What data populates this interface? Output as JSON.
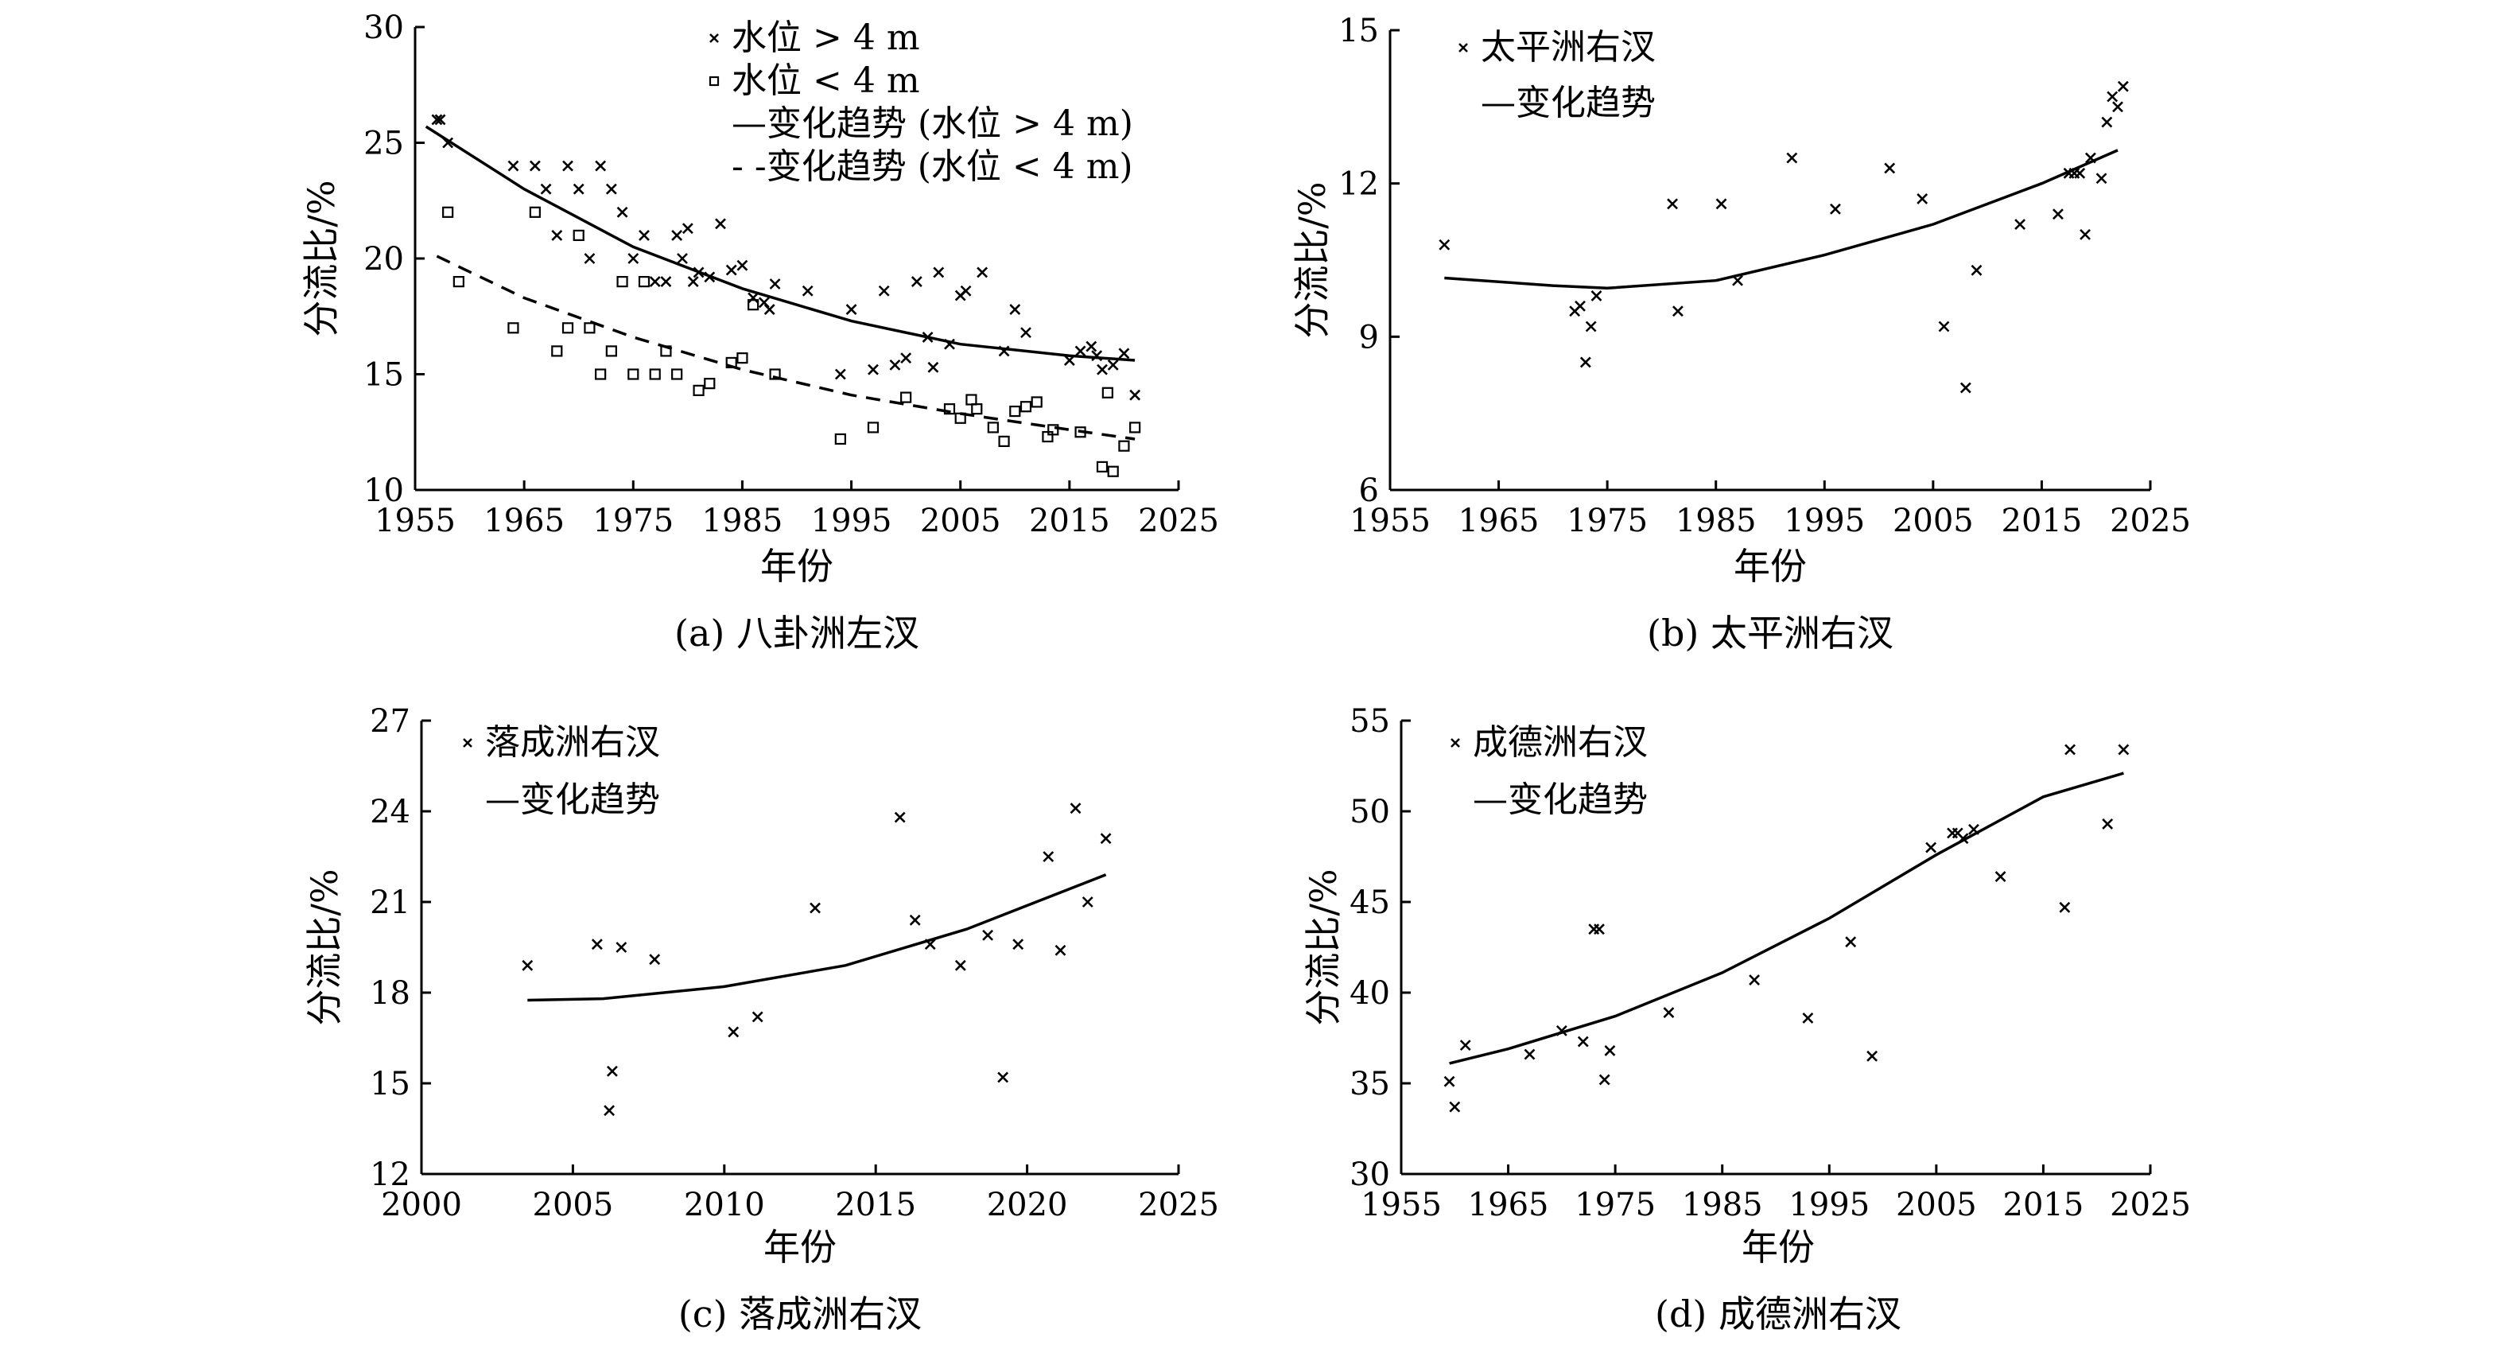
{
  "chart_data": [
    {
      "type": "scatter",
      "caption": "(a) 八卦洲左汊",
      "xlabel": "年份",
      "ylabel": "分流比/%",
      "xlim": [
        1955,
        2025
      ],
      "ylim": [
        10,
        30
      ],
      "xticks": [
        1955,
        1965,
        1975,
        1985,
        1995,
        2005,
        2015,
        2025
      ],
      "yticks": [
        10,
        15,
        20,
        25,
        30
      ],
      "legend_position": "top-right",
      "legend": [
        "水位 > 4 m",
        "水位 < 4 m",
        "—变化趋势 (水位 > 4 m)",
        "- -变化趋势 (水位 < 4 m)"
      ],
      "series": [
        {
          "name": "水位 > 4 m",
          "marker": "x",
          "points": [
            [
              1957,
              26
            ],
            [
              1957.3,
              26
            ],
            [
              1958,
              25
            ],
            [
              1964,
              24
            ],
            [
              1966,
              24
            ],
            [
              1967,
              23
            ],
            [
              1968,
              21
            ],
            [
              1969,
              24
            ],
            [
              1970,
              23
            ],
            [
              1971,
              20
            ],
            [
              1972,
              24
            ],
            [
              1973,
              23
            ],
            [
              1974,
              22
            ],
            [
              1975,
              20
            ],
            [
              1976,
              21
            ],
            [
              1977,
              19
            ],
            [
              1978,
              19
            ],
            [
              1979,
              21
            ],
            [
              1979.5,
              20
            ],
            [
              1980,
              21.3
            ],
            [
              1980.5,
              19
            ],
            [
              1981,
              19.4
            ],
            [
              1982,
              19.2
            ],
            [
              1983,
              21.5
            ],
            [
              1984,
              19.5
            ],
            [
              1985,
              19.7
            ],
            [
              1986,
              18.3
            ],
            [
              1987,
              18.1
            ],
            [
              1987.5,
              17.8
            ],
            [
              1988,
              18.9
            ],
            [
              1991,
              18.6
            ],
            [
              1994,
              15
            ],
            [
              1995,
              17.8
            ],
            [
              1997,
              15.2
            ],
            [
              1998,
              18.6
            ],
            [
              1999,
              15.4
            ],
            [
              2000,
              15.7
            ],
            [
              2001,
              19
            ],
            [
              2002,
              16.6
            ],
            [
              2002.5,
              15.3
            ],
            [
              2003,
              19.4
            ],
            [
              2004,
              16.3
            ],
            [
              2005,
              18.4
            ],
            [
              2005.5,
              18.6
            ],
            [
              2007,
              19.4
            ],
            [
              2009,
              16
            ],
            [
              2010,
              17.8
            ],
            [
              2011,
              16.8
            ],
            [
              2015,
              15.6
            ],
            [
              2016,
              16
            ],
            [
              2017,
              16.2
            ],
            [
              2017.5,
              15.8
            ],
            [
              2018,
              15.2
            ],
            [
              2019,
              15.4
            ],
            [
              2020,
              15.9
            ],
            [
              2021,
              14.1
            ]
          ]
        },
        {
          "name": "水位 < 4 m",
          "marker": "square",
          "points": [
            [
              1958,
              22
            ],
            [
              1959,
              19
            ],
            [
              1964,
              17
            ],
            [
              1966,
              22
            ],
            [
              1968,
              16
            ],
            [
              1969,
              17
            ],
            [
              1970,
              21
            ],
            [
              1971,
              17
            ],
            [
              1972,
              15
            ],
            [
              1973,
              16
            ],
            [
              1974,
              19
            ],
            [
              1975,
              15
            ],
            [
              1976,
              19
            ],
            [
              1977,
              15
            ],
            [
              1978,
              16
            ],
            [
              1979,
              15
            ],
            [
              1981,
              14.3
            ],
            [
              1982,
              14.6
            ],
            [
              1984,
              15.5
            ],
            [
              1985,
              15.7
            ],
            [
              1986,
              18
            ],
            [
              1988,
              15
            ],
            [
              1994,
              12.2
            ],
            [
              1997,
              12.7
            ],
            [
              2000,
              14
            ],
            [
              2004,
              13.5
            ],
            [
              2005,
              13.1
            ],
            [
              2006,
              13.9
            ],
            [
              2006.5,
              13.5
            ],
            [
              2008,
              12.7
            ],
            [
              2009,
              12.1
            ],
            [
              2010,
              13.4
            ],
            [
              2011,
              13.6
            ],
            [
              2012,
              13.8
            ],
            [
              2013,
              12.3
            ],
            [
              2013.5,
              12.6
            ],
            [
              2016,
              12.5
            ],
            [
              2018,
              11
            ],
            [
              2018.5,
              14.2
            ],
            [
              2019,
              10.8
            ],
            [
              2020,
              11.9
            ],
            [
              2021,
              12.7
            ]
          ]
        },
        {
          "name": "变化趋势 (水位 > 4 m)",
          "type": "line",
          "points": [
            [
              1956,
              25.7
            ],
            [
              1965,
              23
            ],
            [
              1975,
              20.5
            ],
            [
              1985,
              18.7
            ],
            [
              1995,
              17.3
            ],
            [
              2005,
              16.3
            ],
            [
              2015,
              15.8
            ],
            [
              2021,
              15.6
            ]
          ]
        },
        {
          "name": "变化趋势 (水位 < 4 m)",
          "type": "line",
          "style": "dashed",
          "points": [
            [
              1957,
              20.1
            ],
            [
              1965,
              18.3
            ],
            [
              1975,
              16.6
            ],
            [
              1985,
              15.2
            ],
            [
              1995,
              14.1
            ],
            [
              2005,
              13.3
            ],
            [
              2015,
              12.6
            ],
            [
              2021,
              12.2
            ]
          ]
        }
      ]
    },
    {
      "type": "scatter",
      "caption": "(b) 太平洲右汊",
      "xlabel": "年份",
      "ylabel": "分流比/%",
      "xlim": [
        1955,
        2025
      ],
      "ylim": [
        6,
        15
      ],
      "xticks": [
        1955,
        1965,
        1975,
        1985,
        1995,
        2005,
        2015,
        2025
      ],
      "yticks": [
        6,
        9,
        12,
        15
      ],
      "legend_position": "top-left",
      "legend": [
        "太平洲右汊",
        "—变化趋势"
      ],
      "series": [
        {
          "name": "太平洲右汊",
          "marker": "x",
          "points": [
            [
              1960,
              10.8
            ],
            [
              1972,
              9.5
            ],
            [
              1972.5,
              9.6
            ],
            [
              1973,
              8.5
            ],
            [
              1973.5,
              9.2
            ],
            [
              1974,
              9.8
            ],
            [
              1981,
              11.6
            ],
            [
              1981.5,
              9.5
            ],
            [
              1985.5,
              11.6
            ],
            [
              1987,
              10.1
            ],
            [
              1992,
              12.5
            ],
            [
              1996,
              11.5
            ],
            [
              2001,
              12.3
            ],
            [
              2004,
              11.7
            ],
            [
              2006,
              9.2
            ],
            [
              2008,
              8
            ],
            [
              2009,
              10.3
            ],
            [
              2013,
              11.2
            ],
            [
              2016.5,
              11.4
            ],
            [
              2017.5,
              12.2
            ],
            [
              2018,
              12.2
            ],
            [
              2018.5,
              12.2
            ],
            [
              2019,
              11
            ],
            [
              2019.5,
              12.5
            ],
            [
              2020.5,
              12.1
            ],
            [
              2021,
              13.2
            ],
            [
              2021.5,
              13.7
            ],
            [
              2022,
              13.5
            ],
            [
              2022.5,
              13.9
            ]
          ]
        },
        {
          "name": "变化趋势",
          "type": "line",
          "points": [
            [
              1960,
              10.15
            ],
            [
              1970,
              10
            ],
            [
              1975,
              9.95
            ],
            [
              1985,
              10.1
            ],
            [
              1995,
              10.6
            ],
            [
              2005,
              11.2
            ],
            [
              2015,
              12
            ],
            [
              2022,
              12.65
            ]
          ]
        }
      ]
    },
    {
      "type": "scatter",
      "caption": "(c) 落成洲右汊",
      "xlabel": "年份",
      "ylabel": "分流比/%",
      "xlim": [
        2000,
        2025
      ],
      "ylim": [
        12,
        27
      ],
      "xticks": [
        2000,
        2005,
        2010,
        2015,
        2020,
        2025
      ],
      "yticks": [
        12,
        15,
        18,
        21,
        24,
        27
      ],
      "legend_position": "top-left",
      "legend": [
        "落成洲右汊",
        "—变化趋势"
      ],
      "series": [
        {
          "name": "落成洲右汊",
          "marker": "x",
          "points": [
            [
              2003.5,
              18.9
            ],
            [
              2005.8,
              19.6
            ],
            [
              2006.2,
              14.1
            ],
            [
              2006.3,
              15.4
            ],
            [
              2006.6,
              19.5
            ],
            [
              2007.7,
              19.1
            ],
            [
              2010.3,
              16.7
            ],
            [
              2011.1,
              17.2
            ],
            [
              2013,
              20.8
            ],
            [
              2015.8,
              23.8
            ],
            [
              2016.3,
              20.4
            ],
            [
              2016.8,
              19.6
            ],
            [
              2017.8,
              18.9
            ],
            [
              2018.7,
              19.9
            ],
            [
              2019.2,
              15.2
            ],
            [
              2019.7,
              19.6
            ],
            [
              2020.7,
              22.5
            ],
            [
              2021.1,
              19.4
            ],
            [
              2021.6,
              24.1
            ],
            [
              2022,
              21
            ],
            [
              2022.6,
              23.1
            ]
          ]
        },
        {
          "name": "变化趋势",
          "type": "line",
          "points": [
            [
              2003.5,
              17.75
            ],
            [
              2006,
              17.8
            ],
            [
              2010,
              18.2
            ],
            [
              2014,
              18.9
            ],
            [
              2018,
              20.1
            ],
            [
              2022.6,
              21.9
            ]
          ]
        }
      ]
    },
    {
      "type": "scatter",
      "caption": "(d) 成德洲右汊",
      "xlabel": "年份",
      "ylabel": "分流比/%",
      "xlim": [
        1955,
        2025
      ],
      "ylim": [
        30,
        55
      ],
      "xticks": [
        1955,
        1965,
        1975,
        1985,
        1995,
        2005,
        2015,
        2025
      ],
      "yticks": [
        30,
        35,
        40,
        45,
        50,
        55
      ],
      "legend_position": "top-left",
      "legend": [
        "成德洲右汊",
        "—变化趋势"
      ],
      "series": [
        {
          "name": "成德洲右汊",
          "marker": "x",
          "points": [
            [
              1959.5,
              35.1
            ],
            [
              1960,
              33.7
            ],
            [
              1961,
              37.1
            ],
            [
              1967,
              36.6
            ],
            [
              1970,
              37.9
            ],
            [
              1972,
              37.3
            ],
            [
              1973,
              43.5
            ],
            [
              1973.5,
              43.5
            ],
            [
              1974,
              35.2
            ],
            [
              1974.5,
              36.8
            ],
            [
              1980,
              38.9
            ],
            [
              1988,
              40.7
            ],
            [
              1993,
              38.6
            ],
            [
              1997,
              42.8
            ],
            [
              1999,
              36.5
            ],
            [
              2004.5,
              48
            ],
            [
              2006.5,
              48.8
            ],
            [
              2007,
              48.8
            ],
            [
              2007.5,
              48.5
            ],
            [
              2008.5,
              49
            ],
            [
              2011,
              46.4
            ],
            [
              2017,
              44.7
            ],
            [
              2017.5,
              53.4
            ],
            [
              2021,
              49.3
            ],
            [
              2022.5,
              53.4
            ]
          ]
        },
        {
          "name": "变化趋势",
          "type": "line",
          "points": [
            [
              1959.5,
              36.1
            ],
            [
              1965,
              36.9
            ],
            [
              1975,
              38.7
            ],
            [
              1985,
              41.1
            ],
            [
              1995,
              44.1
            ],
            [
              2005,
              47.6
            ],
            [
              2015,
              50.8
            ],
            [
              2022.5,
              52.1
            ]
          ]
        }
      ]
    }
  ]
}
